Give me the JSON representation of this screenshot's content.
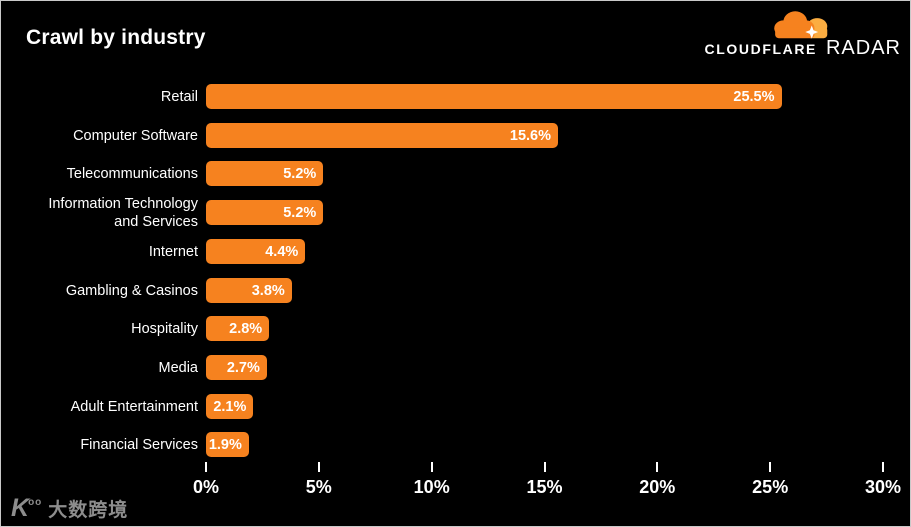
{
  "header": {
    "title": "Crawl by industry",
    "logo_cloudflare": "CLOUDFLARE",
    "logo_radar": "RADAR"
  },
  "colors": {
    "background": "#000000",
    "bar_orange": "#F6821F",
    "cloud_light_orange": "#FBAD41",
    "text": "#FFFFFF",
    "watermark_gray": "#8D8D8D"
  },
  "watermark": {
    "icon": "K00",
    "text": "大数跨境"
  },
  "chart_data": {
    "type": "bar",
    "orientation": "horizontal",
    "title": "Crawl by industry",
    "categories": [
      "Retail",
      "Computer Software",
      "Telecommunications",
      "Information Technology and Services",
      "Internet",
      "Gambling & Casinos",
      "Hospitality",
      "Media",
      "Adult Entertainment",
      "Financial Services"
    ],
    "values": [
      25.5,
      15.6,
      5.2,
      5.2,
      4.4,
      3.8,
      2.8,
      2.7,
      2.1,
      1.9
    ],
    "value_labels": [
      "25.5%",
      "15.6%",
      "5.2%",
      "5.2%",
      "4.4%",
      "3.8%",
      "2.8%",
      "2.7%",
      "2.1%",
      "1.9%"
    ],
    "xlabel": "",
    "ylabel": "",
    "xlim": [
      0,
      30
    ],
    "x_ticks": [
      "0%",
      "5%",
      "10%",
      "15%",
      "20%",
      "25%",
      "30%"
    ],
    "x_tick_values": [
      0,
      5,
      10,
      15,
      20,
      25,
      30
    ],
    "grid": false,
    "legend": null,
    "bar_color": "#F6821F",
    "value_label_position": "inside-right"
  }
}
